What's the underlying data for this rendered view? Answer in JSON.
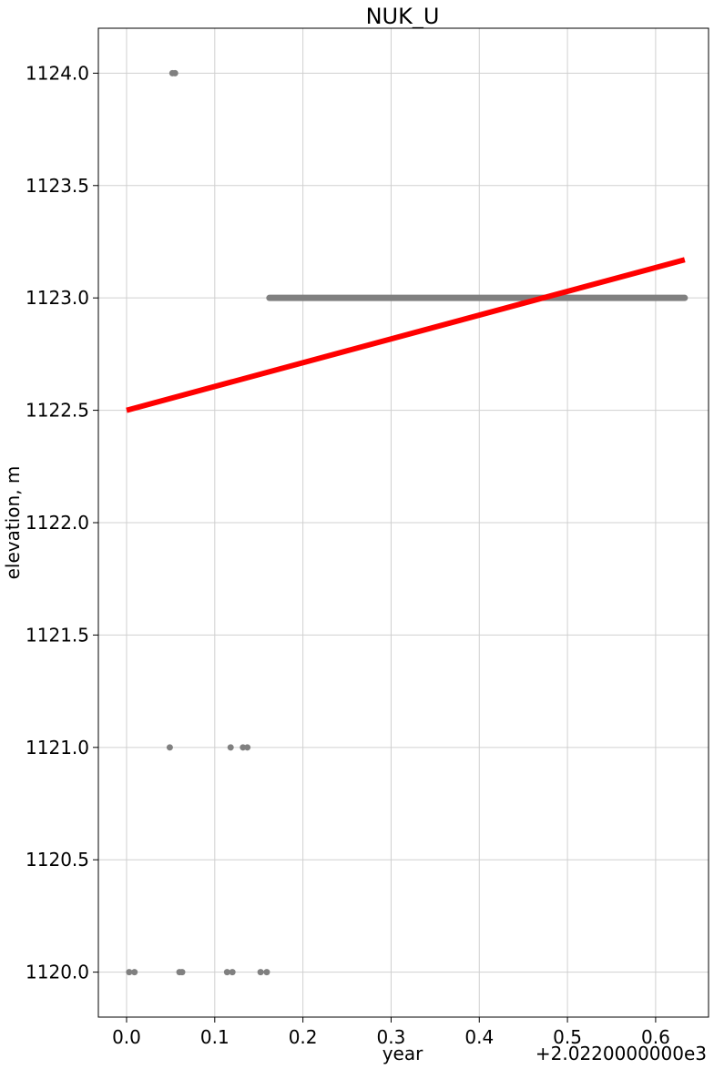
{
  "chart_data": {
    "type": "scatter",
    "title": "NUK_U",
    "xlabel": "year",
    "ylabel": "elevation, m",
    "x_offset_label": "+2.0220000000e3",
    "xlim": [
      -0.032,
      0.66
    ],
    "ylim": [
      1119.8,
      1124.2
    ],
    "x_ticks": [
      {
        "value": 0.0,
        "label": "0.0"
      },
      {
        "value": 0.1,
        "label": "0.1"
      },
      {
        "value": 0.2,
        "label": "0.2"
      },
      {
        "value": 0.3,
        "label": "0.3"
      },
      {
        "value": 0.4,
        "label": "0.4"
      },
      {
        "value": 0.5,
        "label": "0.5"
      },
      {
        "value": 0.6,
        "label": "0.6"
      }
    ],
    "y_ticks": [
      {
        "value": 1120.0,
        "label": "1120.0"
      },
      {
        "value": 1120.5,
        "label": "1120.5"
      },
      {
        "value": 1121.0,
        "label": "1121.0"
      },
      {
        "value": 1121.5,
        "label": "1121.5"
      },
      {
        "value": 1122.0,
        "label": "1122.0"
      },
      {
        "value": 1122.5,
        "label": "1122.5"
      },
      {
        "value": 1123.0,
        "label": "1123.0"
      },
      {
        "value": 1123.5,
        "label": "1123.5"
      },
      {
        "value": 1124.0,
        "label": "1124.0"
      }
    ],
    "grid": true,
    "points_color": "#808080",
    "points": [
      {
        "x": 0.003,
        "y": 1120.0
      },
      {
        "x": 0.009,
        "y": 1120.0
      },
      {
        "x": 0.06,
        "y": 1120.0
      },
      {
        "x": 0.063,
        "y": 1120.0
      },
      {
        "x": 0.114,
        "y": 1120.0
      },
      {
        "x": 0.12,
        "y": 1120.0
      },
      {
        "x": 0.152,
        "y": 1120.0
      },
      {
        "x": 0.159,
        "y": 1120.0
      },
      {
        "x": 0.049,
        "y": 1121.0
      },
      {
        "x": 0.118,
        "y": 1121.0
      },
      {
        "x": 0.132,
        "y": 1121.0
      },
      {
        "x": 0.137,
        "y": 1121.0
      },
      {
        "x": 0.052,
        "y": 1124.0
      },
      {
        "x": 0.055,
        "y": 1124.0
      }
    ],
    "dense_run": {
      "x_start": 0.162,
      "x_end": 0.633,
      "y": 1123.0
    },
    "trend_line": {
      "color": "#ff0000",
      "x": [
        0.0,
        0.633
      ],
      "y": [
        1122.5,
        1123.17
      ]
    }
  }
}
